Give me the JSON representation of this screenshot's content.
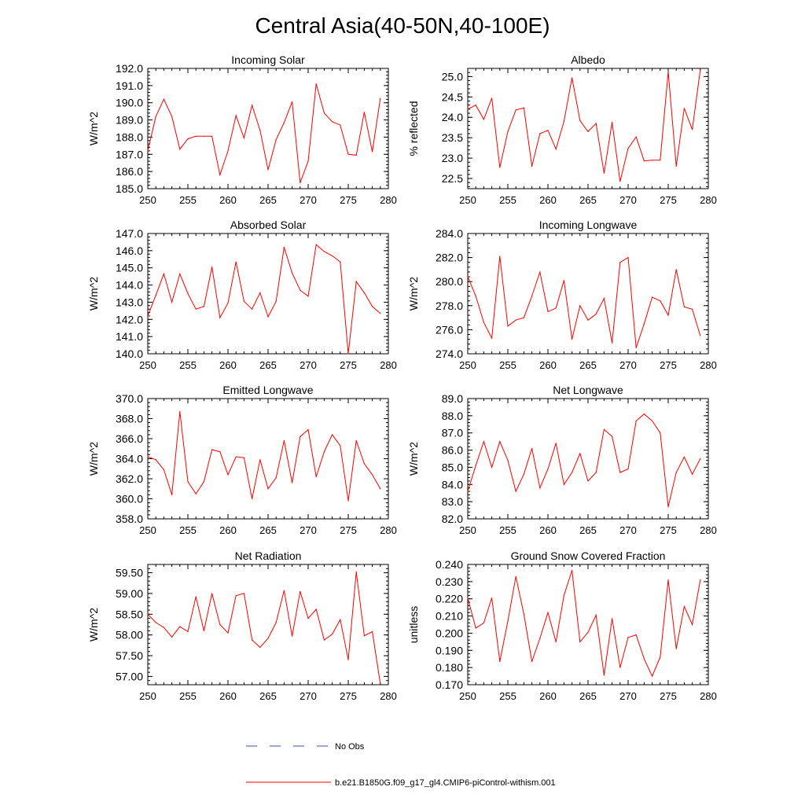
{
  "page_title": "Central Asia(40-50N,40-100E)",
  "colors": {
    "model_line": "#ff0000",
    "obs_line": "#3a4fa8",
    "axis": "#000000"
  },
  "legend": {
    "obs_label": "No Obs",
    "model_label": "b.e21.B1850G.f09_g17_gl4.CMIP6-piControl-withism.001"
  },
  "chart_data": [
    {
      "type": "line",
      "title": "Incoming Solar",
      "xlabel": "",
      "ylabel": "W/m^2",
      "xlim": [
        250,
        280
      ],
      "ylim": [
        185.0,
        192.0
      ],
      "xticks": [
        250,
        255,
        260,
        265,
        270,
        275,
        280
      ],
      "yticks": [
        185.0,
        186.0,
        187.0,
        188.0,
        189.0,
        190.0,
        191.0,
        192.0
      ],
      "ytick_labels": [
        "185.0",
        "186.0",
        "187.0",
        "188.0",
        "189.0",
        "190.0",
        "191.0",
        "192.0"
      ],
      "yminor": 0.2,
      "x": [
        250,
        251,
        252,
        253,
        254,
        255,
        256,
        257,
        258,
        259,
        260,
        261,
        262,
        263,
        264,
        265,
        266,
        267,
        268,
        269,
        270,
        271,
        272,
        273,
        274,
        275,
        276,
        277,
        278,
        279
      ],
      "values": [
        187.2,
        189.2,
        190.2,
        189.2,
        187.3,
        187.9,
        188.05,
        188.05,
        188.05,
        185.8,
        187.2,
        189.25,
        187.95,
        189.85,
        188.4,
        186.1,
        187.85,
        188.85,
        190.05,
        185.35,
        186.6,
        191.1,
        189.4,
        188.9,
        188.7,
        187.0,
        186.95,
        189.45,
        187.15,
        190.25
      ],
      "series_name": "b.e21.B1850G.f09_g17_gl4.CMIP6-piControl-withism.001"
    },
    {
      "type": "line",
      "title": "Albedo",
      "xlabel": "",
      "ylabel": "% reflected",
      "xlim": [
        250,
        280
      ],
      "ylim": [
        22.25,
        25.2
      ],
      "xticks": [
        250,
        255,
        260,
        265,
        270,
        275,
        280
      ],
      "yticks": [
        22.5,
        23.0,
        23.5,
        24.0,
        24.5,
        25.0
      ],
      "ytick_labels": [
        "22.5",
        "23.0",
        "23.5",
        "24.0",
        "24.5",
        "25.0"
      ],
      "yminor": 0.1,
      "x": [
        250,
        251,
        252,
        253,
        254,
        255,
        256,
        257,
        258,
        259,
        260,
        261,
        262,
        263,
        264,
        265,
        266,
        267,
        268,
        269,
        270,
        271,
        272,
        273,
        274,
        275,
        276,
        277,
        278,
        279
      ],
      "values": [
        24.2,
        24.3,
        23.95,
        24.47,
        22.77,
        23.65,
        24.18,
        24.23,
        22.8,
        23.6,
        23.68,
        23.22,
        23.9,
        24.97,
        23.92,
        23.65,
        23.85,
        22.63,
        23.88,
        22.43,
        23.24,
        23.52,
        22.93,
        22.95,
        22.95,
        25.12,
        22.8,
        24.22,
        23.7,
        25.17
      ],
      "series_name": "b.e21.B1850G.f09_g17_gl4.CMIP6-piControl-withism.001"
    },
    {
      "type": "line",
      "title": "Absorbed Solar",
      "xlabel": "",
      "ylabel": "W/m^2",
      "xlim": [
        250,
        280
      ],
      "ylim": [
        140.0,
        147.0
      ],
      "xticks": [
        250,
        255,
        260,
        265,
        270,
        275,
        280
      ],
      "yticks": [
        140.0,
        141.0,
        142.0,
        143.0,
        144.0,
        145.0,
        146.0,
        147.0
      ],
      "ytick_labels": [
        "140.0",
        "141.0",
        "142.0",
        "143.0",
        "144.0",
        "145.0",
        "146.0",
        "147.0"
      ],
      "yminor": 0.2,
      "x": [
        250,
        251,
        252,
        253,
        254,
        255,
        256,
        257,
        258,
        259,
        260,
        261,
        262,
        263,
        264,
        265,
        266,
        267,
        268,
        269,
        270,
        271,
        272,
        273,
        274,
        275,
        276,
        277,
        278,
        279
      ],
      "values": [
        142.2,
        143.4,
        144.65,
        143.0,
        144.65,
        143.5,
        142.6,
        142.75,
        145.05,
        142.1,
        142.95,
        145.35,
        143.05,
        142.6,
        143.55,
        142.15,
        143.05,
        146.2,
        144.7,
        143.7,
        143.35,
        146.35,
        145.95,
        145.7,
        145.35,
        140.0,
        144.2,
        143.55,
        142.75,
        142.35
      ],
      "series_name": "b.e21.B1850G.f09_g17_gl4.CMIP6-piControl-withism.001"
    },
    {
      "type": "line",
      "title": "Incoming Longwave",
      "xlabel": "",
      "ylabel": "W/m^2",
      "xlim": [
        250,
        280
      ],
      "ylim": [
        274.0,
        284.0
      ],
      "xticks": [
        250,
        255,
        260,
        265,
        270,
        275,
        280
      ],
      "yticks": [
        274.0,
        276.0,
        278.0,
        280.0,
        282.0,
        284.0
      ],
      "ytick_labels": [
        "274.0",
        "276.0",
        "278.0",
        "280.0",
        "282.0",
        "284.0"
      ],
      "yminor": 0.4,
      "x": [
        250,
        251,
        252,
        253,
        254,
        255,
        256,
        257,
        258,
        259,
        260,
        261,
        262,
        263,
        264,
        265,
        266,
        267,
        268,
        269,
        270,
        271,
        272,
        273,
        274,
        275,
        276,
        277,
        278,
        279
      ],
      "values": [
        280.4,
        278.8,
        276.6,
        275.3,
        282.1,
        276.3,
        276.8,
        277.0,
        278.8,
        280.8,
        277.5,
        277.8,
        280.1,
        275.2,
        278.0,
        276.8,
        277.3,
        278.6,
        274.9,
        281.6,
        282.0,
        274.5,
        276.5,
        278.7,
        278.4,
        277.2,
        281.0,
        277.9,
        277.7,
        275.5
      ],
      "series_name": "b.e21.B1850G.f09_g17_gl4.CMIP6-piControl-withism.001"
    },
    {
      "type": "line",
      "title": "Emitted Longwave",
      "xlabel": "",
      "ylabel": "W/m^2",
      "xlim": [
        250,
        280
      ],
      "ylim": [
        358.0,
        370.0
      ],
      "xticks": [
        250,
        255,
        260,
        265,
        270,
        275,
        280
      ],
      "yticks": [
        358.0,
        360.0,
        362.0,
        364.0,
        366.0,
        368.0,
        370.0
      ],
      "ytick_labels": [
        "358.0",
        "360.0",
        "362.0",
        "364.0",
        "366.0",
        "368.0",
        "370.0"
      ],
      "yminor": 0.4,
      "x": [
        250,
        251,
        252,
        253,
        254,
        255,
        256,
        257,
        258,
        259,
        260,
        261,
        262,
        263,
        264,
        265,
        266,
        267,
        268,
        269,
        270,
        271,
        272,
        273,
        274,
        275,
        276,
        277,
        278,
        279
      ],
      "values": [
        364.2,
        363.9,
        362.9,
        360.4,
        368.7,
        361.7,
        360.5,
        361.7,
        364.9,
        364.7,
        362.4,
        364.2,
        364.1,
        360.0,
        363.9,
        361.0,
        362.1,
        365.8,
        361.6,
        366.2,
        366.9,
        362.2,
        364.7,
        366.4,
        365.3,
        359.8,
        365.8,
        363.5,
        362.4,
        361.0
      ],
      "series_name": "b.e21.B1850G.f09_g17_gl4.CMIP6-piControl-withism.001"
    },
    {
      "type": "line",
      "title": "Net Longwave",
      "xlabel": "",
      "ylabel": "W/m^2",
      "xlim": [
        250,
        280
      ],
      "ylim": [
        82.0,
        89.0
      ],
      "xticks": [
        250,
        255,
        260,
        265,
        270,
        275,
        280
      ],
      "yticks": [
        82.0,
        83.0,
        84.0,
        85.0,
        86.0,
        87.0,
        88.0,
        89.0
      ],
      "ytick_labels": [
        "82.0",
        "83.0",
        "84.0",
        "85.0",
        "86.0",
        "87.0",
        "88.0",
        "89.0"
      ],
      "yminor": 0.2,
      "x": [
        250,
        251,
        252,
        253,
        254,
        255,
        256,
        257,
        258,
        259,
        260,
        261,
        262,
        263,
        264,
        265,
        266,
        267,
        268,
        269,
        270,
        271,
        272,
        273,
        274,
        275,
        276,
        277,
        278,
        279
      ],
      "values": [
        83.6,
        85.1,
        86.5,
        85.0,
        86.5,
        85.4,
        83.6,
        84.6,
        86.1,
        83.8,
        84.9,
        86.4,
        84.0,
        84.7,
        85.8,
        84.2,
        84.7,
        87.2,
        86.8,
        84.7,
        84.9,
        87.7,
        88.1,
        87.7,
        87.0,
        82.7,
        84.7,
        85.6,
        84.6,
        85.5
      ],
      "series_name": "b.e21.B1850G.f09_g17_gl4.CMIP6-piControl-withism.001"
    },
    {
      "type": "line",
      "title": "Net Radiation",
      "xlabel": "",
      "ylabel": "W/m^2",
      "xlim": [
        250,
        280
      ],
      "ylim": [
        56.8,
        59.7
      ],
      "xticks": [
        250,
        255,
        260,
        265,
        270,
        275,
        280
      ],
      "yticks": [
        57.0,
        57.5,
        58.0,
        58.5,
        59.0,
        59.5
      ],
      "ytick_labels": [
        "57.00",
        "57.50",
        "58.00",
        "58.50",
        "59.00",
        "59.50"
      ],
      "yminor": 0.1,
      "x": [
        250,
        251,
        252,
        253,
        254,
        255,
        256,
        257,
        258,
        259,
        260,
        261,
        262,
        263,
        264,
        265,
        266,
        267,
        268,
        269,
        270,
        271,
        272,
        273,
        274,
        275,
        276,
        277,
        278,
        279
      ],
      "values": [
        58.5,
        58.3,
        58.18,
        57.95,
        58.2,
        58.08,
        58.92,
        58.1,
        59.0,
        58.25,
        58.05,
        58.95,
        59.0,
        57.88,
        57.7,
        57.92,
        58.3,
        59.07,
        57.97,
        59.05,
        58.4,
        58.62,
        57.88,
        58.02,
        58.37,
        57.4,
        59.52,
        57.98,
        58.08,
        56.82
      ],
      "series_name": "b.e21.B1850G.f09_g17_gl4.CMIP6-piControl-withism.001"
    },
    {
      "type": "line",
      "title": "Ground Snow Covered Fraction",
      "xlabel": "",
      "ylabel": "unitless",
      "xlim": [
        250,
        280
      ],
      "ylim": [
        0.17,
        0.24
      ],
      "xticks": [
        250,
        255,
        260,
        265,
        270,
        275,
        280
      ],
      "yticks": [
        0.17,
        0.18,
        0.19,
        0.2,
        0.21,
        0.22,
        0.23,
        0.24
      ],
      "ytick_labels": [
        "0.170",
        "0.180",
        "0.190",
        "0.200",
        "0.210",
        "0.220",
        "0.230",
        "0.240"
      ],
      "yminor": 0.002,
      "x": [
        250,
        251,
        252,
        253,
        254,
        255,
        256,
        257,
        258,
        259,
        260,
        261,
        262,
        263,
        264,
        265,
        266,
        267,
        268,
        269,
        270,
        271,
        272,
        273,
        274,
        275,
        276,
        277,
        278,
        279
      ],
      "values": [
        0.2205,
        0.203,
        0.206,
        0.2205,
        0.1835,
        0.207,
        0.233,
        0.211,
        0.1835,
        0.197,
        0.212,
        0.195,
        0.222,
        0.2365,
        0.195,
        0.2005,
        0.2105,
        0.1755,
        0.2085,
        0.18,
        0.1975,
        0.199,
        0.185,
        0.175,
        0.186,
        0.231,
        0.191,
        0.2155,
        0.205,
        0.231
      ],
      "series_name": "b.e21.B1850G.f09_g17_gl4.CMIP6-piControl-withism.001"
    }
  ]
}
